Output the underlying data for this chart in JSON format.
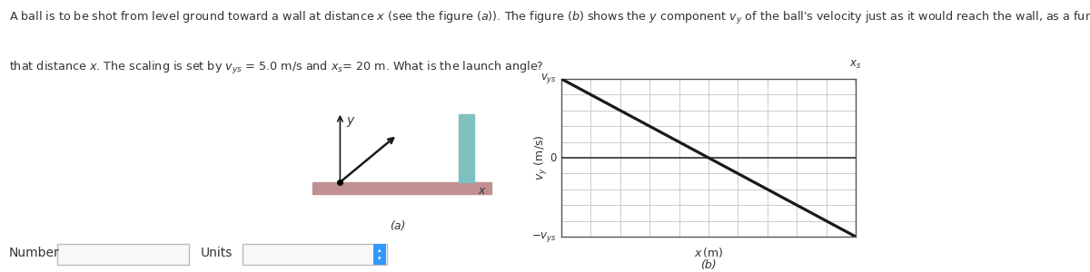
{
  "header_line1": "A ball is to be shot from level ground toward a wall at distance x (see the figure (a)). The figure (b) shows the y component v_y of the ball's velocity just as it would reach the wall, as a function of",
  "header_line2": "that distance x. The scaling is set by v_ys = 5.0 m/s and x_s= 20 m. What is the launch angle?",
  "fig_a_label": "(a)",
  "fig_b_label": "(b)",
  "graph_xlabel": "x (m)",
  "graph_ylabel": "v_y (m/s)",
  "number_label": "Number",
  "units_label": "Units",
  "ground_color": "#c09090",
  "wall_color": "#80c0c0",
  "grid_color": "#cccccc",
  "line_color": "#1a1a1a",
  "text_color": "#333333",
  "bg_color": "#ffffff",
  "arrow_color": "#1a1a1a"
}
